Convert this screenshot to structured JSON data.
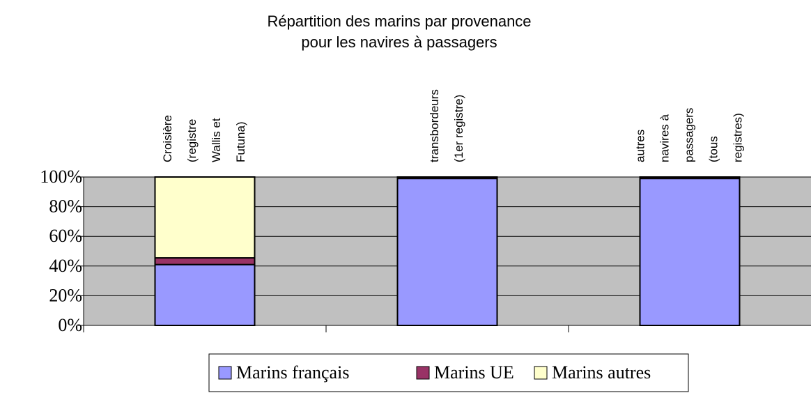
{
  "chart_data": {
    "type": "stacked_bar_percent",
    "title": [
      "Répartition des marins par provenance",
      "pour les navires à passagers"
    ],
    "categories": [
      [
        "Croisière",
        "(registre",
        "Wallis et",
        "Futuna)"
      ],
      [
        "transbordeurs",
        "(1er registre)"
      ],
      [
        "autres",
        "navires à",
        "passagers",
        "(tous",
        "registres)"
      ]
    ],
    "series": [
      {
        "name": "Marins français",
        "color": "#9999ff",
        "values": [
          41,
          99,
          99
        ]
      },
      {
        "name": "Marins UE",
        "color": "#993366",
        "values": [
          4.5,
          1,
          1
        ]
      },
      {
        "name": "Marins autres",
        "color": "#ffffcc",
        "values": [
          54.5,
          0,
          0
        ]
      }
    ],
    "ylim": [
      0,
      100
    ],
    "yticks": [
      {
        "value": 0,
        "label": "0%"
      },
      {
        "value": 20,
        "label": "20%"
      },
      {
        "value": 40,
        "label": "40%"
      },
      {
        "value": 60,
        "label": "60%"
      },
      {
        "value": 80,
        "label": "80%"
      },
      {
        "value": 100,
        "label": "100%"
      }
    ],
    "grid": true,
    "legend": "bottom"
  }
}
